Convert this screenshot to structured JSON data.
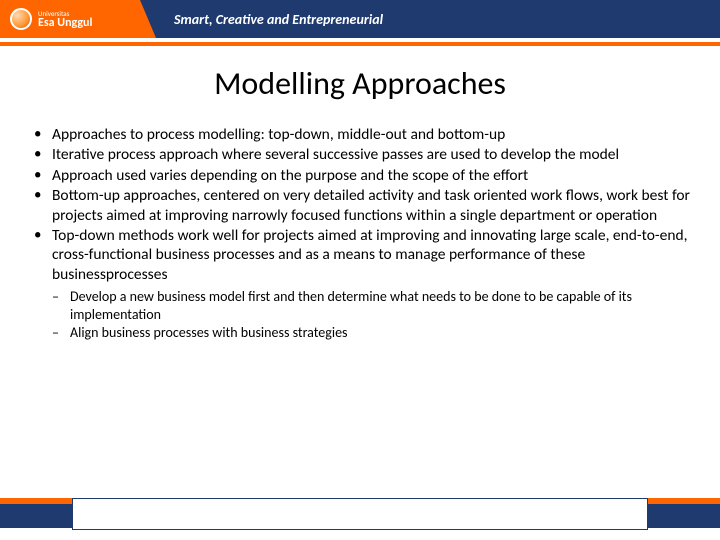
{
  "colors": {
    "navy": "#1e3a6e",
    "orange": "#ff6600",
    "white": "#ffffff",
    "text": "#000000"
  },
  "header": {
    "logo_name": "Esa Unggul",
    "logo_sub": "Universitas",
    "tagline": "Smart, Creative and Entrepreneurial"
  },
  "title": "Modelling Approaches",
  "bullets": [
    "Approaches to process modelling: top-down, middle-out and bottom-up",
    "Iterative process approach where several successive passes are used to develop the model",
    "Approach used varies depending on the purpose and the scope of the effort",
    "Bottom-up approaches, centered on very detailed activity and task oriented work flows, work best for projects aimed at improving narrowly focused functions within a single department or operation",
    "Top-down methods work well for projects aimed at improving and innovating large scale, end-to-end, cross-functional business processes and as a means to manage performance of these businessprocesses"
  ],
  "sub_bullets": [
    "Develop a new business model first and then determine what needs to be done to be capable of its implementation",
    "Align business processes with business strategies"
  ],
  "typography": {
    "title_fontsize": 32,
    "bullet_fontsize": 15.5,
    "sub_bullet_fontsize": 14,
    "tagline_fontsize": 14
  }
}
